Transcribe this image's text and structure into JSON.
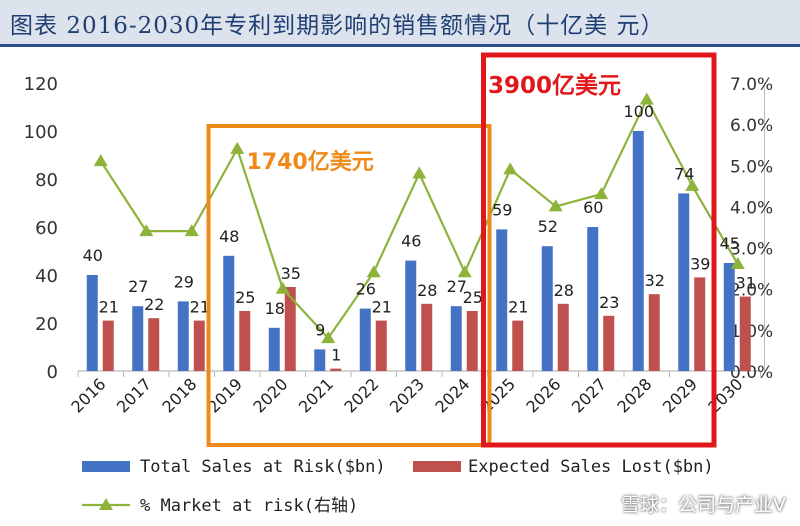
{
  "header": {
    "title": "图表 2016-2030年专利到期影响的销售额情况（十亿美 元）"
  },
  "chart_data": {
    "type": "bar",
    "title": "图表 2016-2030年专利到期影响的销售额情况（十亿美 元）",
    "categories": [
      "2016",
      "2017",
      "2018",
      "2019",
      "2020",
      "2021",
      "2022",
      "2023",
      "2024",
      "2025",
      "2026",
      "2027",
      "2028",
      "2029",
      "2030"
    ],
    "series": [
      {
        "name": "Total Sales at Risk($bn)",
        "kind": "bar",
        "color": "#4472c4",
        "values": [
          40,
          27,
          29,
          48,
          18,
          9,
          26,
          46,
          27,
          59,
          52,
          60,
          100,
          74,
          45
        ]
      },
      {
        "name": "Expected Sales Lost($bn)",
        "kind": "bar",
        "color": "#c0504d",
        "values": [
          21,
          22,
          21,
          25,
          35,
          1,
          21,
          28,
          25,
          21,
          28,
          23,
          32,
          39,
          31
        ]
      },
      {
        "name": "% Market at risk(右轴)",
        "kind": "line",
        "axis": "right",
        "color": "#8db33a",
        "values": [
          5.1,
          3.4,
          3.4,
          5.4,
          2.0,
          0.8,
          2.4,
          4.8,
          2.4,
          4.9,
          4.0,
          4.3,
          6.6,
          4.5,
          2.6
        ]
      }
    ],
    "y_left": {
      "ticks": [
        "0",
        "20",
        "40",
        "60",
        "80",
        "100",
        "120"
      ],
      "ylim": [
        0,
        120
      ]
    },
    "y_right": {
      "ticks": [
        "0.0%",
        "1.0%",
        "2.0%",
        "3.0%",
        "4.0%",
        "5.0%",
        "6.0%",
        "7.0%"
      ],
      "ylim": [
        0,
        7
      ]
    },
    "bar_labels_total": [
      "40",
      "27",
      "29",
      "48",
      "18",
      "9",
      "26",
      "46",
      "27",
      "59",
      "52",
      "60",
      "100",
      "74",
      "45"
    ],
    "bar_labels_lost": [
      "21",
      "22",
      "21",
      "25",
      "35",
      "1",
      "21",
      "28",
      "25",
      "21",
      "28",
      "23",
      "32",
      "39",
      "31"
    ],
    "annotations": {
      "orange_box": {
        "text": "1740亿美元",
        "from": "2019",
        "to": "2024",
        "color": "#ee8a1a"
      },
      "red_box": {
        "text": "3900亿美元",
        "from": "2025",
        "to": "2030",
        "color": "#e0181c"
      }
    },
    "legend": {
      "position": "bottom",
      "items": [
        "Total Sales at Risk($bn)",
        "Expected Sales Lost($bn)",
        "% Market at risk(右轴)"
      ]
    }
  },
  "watermark": "雪球：公司与产业V"
}
